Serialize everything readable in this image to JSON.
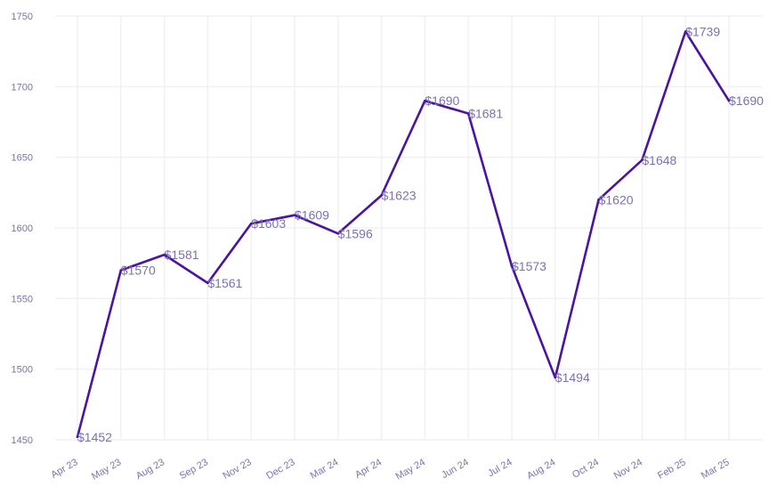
{
  "colors": {
    "line": "#4a14a0",
    "label": "#7a72b0",
    "tick": "#7a72b0",
    "grid": "#f1f1f5",
    "background": "#ffffff"
  },
  "chart_data": {
    "type": "line",
    "title": "",
    "xlabel": "",
    "ylabel": "",
    "categories": [
      "Apr 23",
      "May 23",
      "Aug 23",
      "Sep 23",
      "Nov 23",
      "Dec 23",
      "Mar 24",
      "Apr 24",
      "May 24",
      "Jun 24",
      "Jul 24",
      "Aug 24",
      "Oct 24",
      "Nov 24",
      "Feb 25",
      "Mar 25"
    ],
    "values": [
      1452,
      1570,
      1581,
      1561,
      1603,
      1609,
      1596,
      1623,
      1690,
      1681,
      1573,
      1494,
      1620,
      1648,
      1739,
      1690
    ],
    "data_labels": [
      "$1452",
      "$1570",
      "$1581",
      "$1561",
      "$1603",
      "$1609",
      "$1596",
      "$1623",
      "$1690",
      "$1681",
      "$1573",
      "$1494",
      "$1620",
      "$1648",
      "$1739",
      "$1690"
    ],
    "ylim": [
      1450,
      1750
    ],
    "yticks": [
      1450,
      1500,
      1550,
      1600,
      1650,
      1700,
      1750
    ],
    "ytick_labels": [
      "1450",
      "1500",
      "1550",
      "1600",
      "1650",
      "1700",
      "1750"
    ],
    "grid": true,
    "legend": "none"
  }
}
